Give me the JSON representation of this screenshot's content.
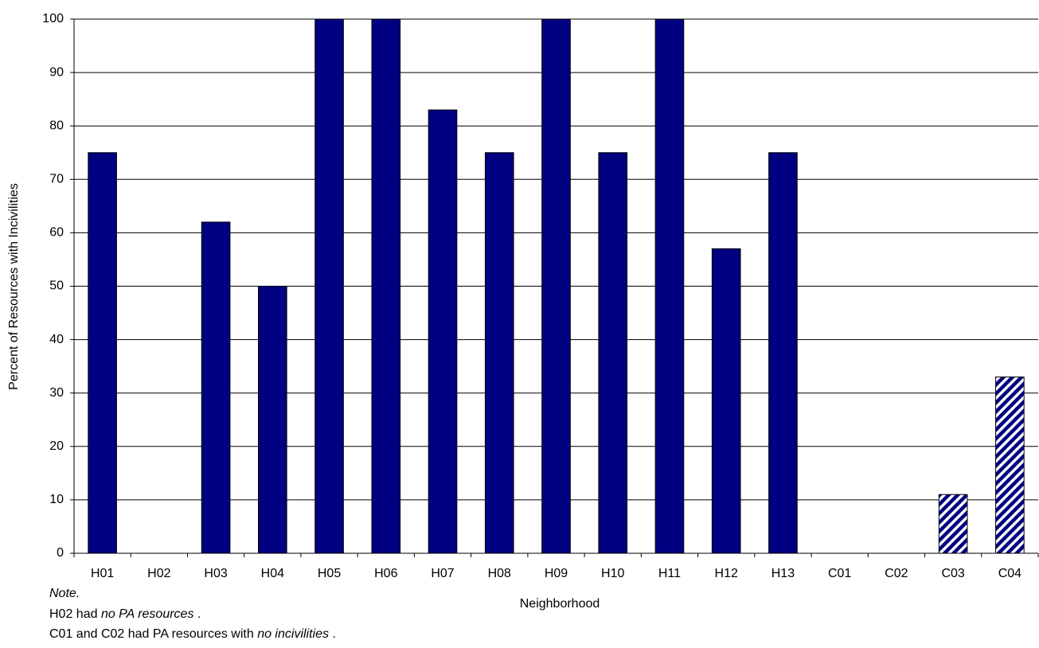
{
  "chart_data": {
    "type": "bar",
    "x_label": "Neighborhood",
    "y_label": "Percent of Resources with Incivilities",
    "categories": [
      "H01",
      "H02",
      "H03",
      "H04",
      "H05",
      "H06",
      "H07",
      "H08",
      "H09",
      "H10",
      "H11",
      "H12",
      "H13",
      "C01",
      "C02",
      "C03",
      "C04"
    ],
    "values": [
      75,
      null,
      62,
      50,
      100,
      100,
      83,
      75,
      100,
      75,
      100,
      57,
      75,
      0,
      0,
      11,
      33
    ],
    "hatched": [
      false,
      false,
      false,
      false,
      false,
      false,
      false,
      false,
      false,
      false,
      false,
      false,
      false,
      false,
      false,
      true,
      true
    ],
    "color": "#000080",
    "ylim": [
      0,
      100
    ],
    "yticks": [
      0,
      10,
      20,
      30,
      40,
      50,
      60,
      70,
      80,
      90,
      100
    ],
    "grid": true,
    "note": {
      "heading": "Note.",
      "lines": [
        [
          "H02 had ",
          "no PA resources",
          " ."
        ],
        [
          "C01 and C02 had PA resources with ",
          "no incivilities",
          " ."
        ]
      ]
    }
  }
}
